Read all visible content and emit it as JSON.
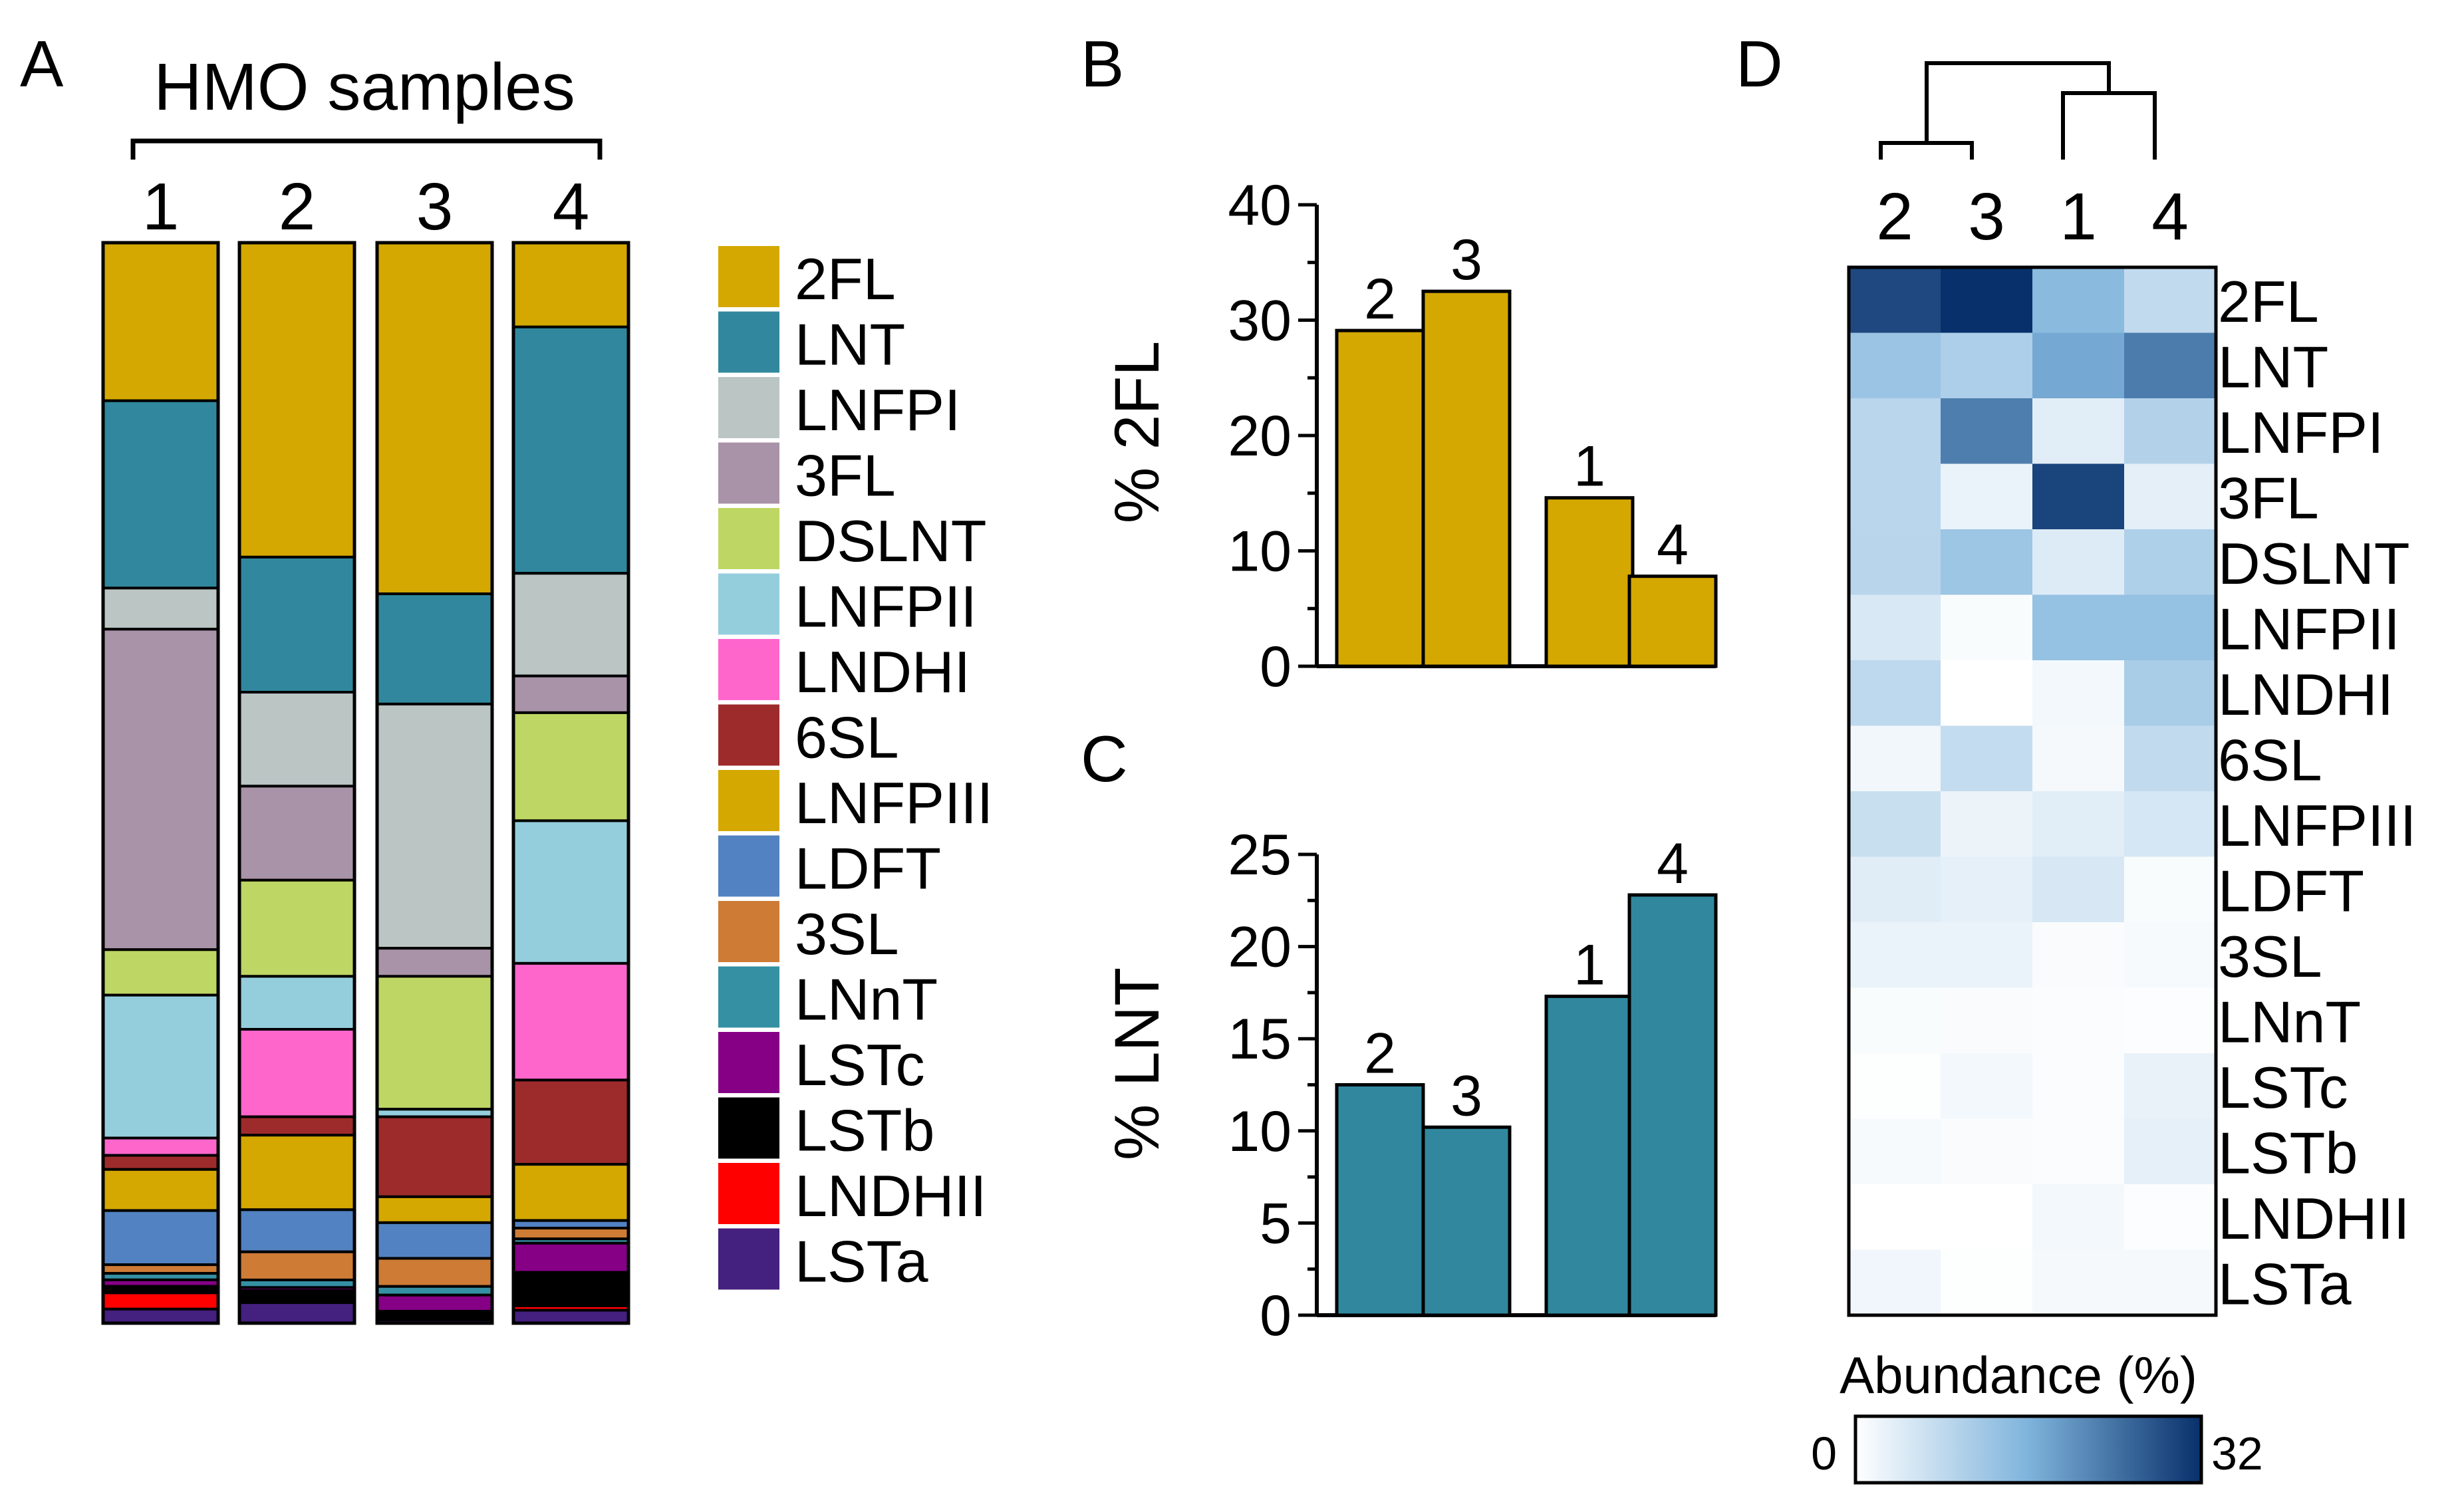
{
  "panel_labels": {
    "a": "A",
    "b": "B",
    "c": "C",
    "d": "D"
  },
  "colors": {
    "2FL": "#D4A800",
    "LNT": "#31889E",
    "LNFPI": "#BAC5C4",
    "3FL": "#A993A8",
    "DSLNT": "#BED663",
    "LNFPII": "#94CEDD",
    "LNDHI": "#FF66CC",
    "6SL": "#9E2B2B",
    "LNFPIII": "#D4A800",
    "LDFT": "#5282C1",
    "3SL": "#CD7B35",
    "LNnT": "#3590A3",
    "LSTc": "#850085",
    "LSTb": "#000000",
    "LNDHII": "#FF0000",
    "LSTa": "#44207F"
  },
  "chart_data": [
    {
      "type": "stacked-bar",
      "title": "HMO samples",
      "categories": [
        "1",
        "2",
        "3",
        "4"
      ],
      "components": [
        "2FL",
        "LNT",
        "LNFPI",
        "3FL",
        "DSLNT",
        "LNFPII",
        "LNDHI",
        "6SL",
        "LNFPIII",
        "LDFT",
        "3SL",
        "LNnT",
        "LSTc",
        "LSTb",
        "LNDHII",
        "LSTa"
      ],
      "legend_items": [
        "2FL",
        "LNT",
        "LNFPI",
        "3FL",
        "DSLNT",
        "LNFPII",
        "LNDHI",
        "6SL",
        "LNFPIII",
        "LDFT",
        "3SL",
        "LNnT",
        "LSTc",
        "LSTb",
        "LNDHII",
        "LSTa"
      ],
      "series": [
        {
          "name": "1",
          "segments": [
            [
              "2FL",
              14.6
            ],
            [
              "LNT",
              17.3
            ],
            [
              "LNFPI",
              3.8
            ],
            [
              "3FL",
              29.6
            ],
            [
              "DSLNT",
              4.2
            ],
            [
              "LNFPII",
              13.2
            ],
            [
              "LNDHI",
              1.6
            ],
            [
              "6SL",
              1.3
            ],
            [
              "LNFPIII",
              3.8
            ],
            [
              "LDFT",
              5.0
            ],
            [
              "3SL",
              0.8
            ],
            [
              "LNnT",
              0.6
            ],
            [
              "LSTc",
              0.6
            ],
            [
              "LSTb",
              0.6
            ],
            [
              "LNDHII",
              1.5
            ],
            [
              "LSTa",
              1.3
            ]
          ]
        },
        {
          "name": "2",
          "segments": [
            [
              "2FL",
              29.1
            ],
            [
              "LNT",
              12.5
            ],
            [
              "LNFPI",
              8.7
            ],
            [
              "3FL",
              8.7
            ],
            [
              "DSLNT",
              8.9
            ],
            [
              "LNFPII",
              4.9
            ],
            [
              "LNDHI",
              8.1
            ],
            [
              "6SL",
              1.7
            ],
            [
              "LNFPIII",
              6.9
            ],
            [
              "LDFT",
              3.9
            ],
            [
              "3SL",
              2.6
            ],
            [
              "LNnT",
              0.7
            ],
            [
              "LSTc",
              0.3
            ],
            [
              "LSTb",
              1.1
            ],
            [
              "LNDHII",
              0.0
            ],
            [
              "LSTa",
              1.9
            ]
          ]
        },
        {
          "name": "3",
          "segments": [
            [
              "2FL",
              32.5
            ],
            [
              "LNT",
              10.2
            ],
            [
              "LNFPI",
              22.6
            ],
            [
              "3FL",
              2.6
            ],
            [
              "DSLNT",
              12.3
            ],
            [
              "LNFPII",
              0.7
            ],
            [
              "LNDHI",
              0.0
            ],
            [
              "6SL",
              7.4
            ],
            [
              "LNFPIII",
              2.4
            ],
            [
              "LDFT",
              3.3
            ],
            [
              "3SL",
              2.6
            ],
            [
              "LNnT",
              0.8
            ],
            [
              "LSTc",
              1.5
            ],
            [
              "LSTb",
              0.8
            ],
            [
              "LNDHII",
              0.0
            ],
            [
              "LSTa",
              0.3
            ]
          ]
        },
        {
          "name": "4",
          "segments": [
            [
              "2FL",
              7.8
            ],
            [
              "LNT",
              22.8
            ],
            [
              "LNFPI",
              9.5
            ],
            [
              "3FL",
              3.4
            ],
            [
              "DSLNT",
              10.0
            ],
            [
              "LNFPII",
              13.2
            ],
            [
              "LNDHI",
              10.8
            ],
            [
              "6SL",
              7.8
            ],
            [
              "LNFPIII",
              5.2
            ],
            [
              "LDFT",
              0.7
            ],
            [
              "3SL",
              1.0
            ],
            [
              "LNnT",
              0.4
            ],
            [
              "LSTc",
              2.7
            ],
            [
              "LSTb",
              3.1
            ],
            [
              "LNDHII",
              0.4
            ],
            [
              "LSTa",
              1.2
            ]
          ]
        }
      ]
    },
    {
      "type": "bar",
      "categories": [
        "2",
        "3",
        "1",
        "4"
      ],
      "values": [
        29.1,
        32.5,
        14.6,
        7.8
      ],
      "ylabel": "% 2FL",
      "ylim": [
        0,
        40
      ],
      "yticks": [
        0,
        10,
        20,
        30,
        40
      ],
      "color": "#D4A800"
    },
    {
      "type": "bar",
      "categories": [
        "2",
        "3",
        "1",
        "4"
      ],
      "values": [
        12.5,
        10.2,
        17.3,
        22.8
      ],
      "ylabel": "% LNT",
      "ylim": [
        0,
        25
      ],
      "yticks": [
        0,
        5,
        10,
        15,
        20,
        25
      ],
      "color": "#31889E"
    },
    {
      "type": "heatmap",
      "columns": [
        "2",
        "3",
        "1",
        "4"
      ],
      "rows": [
        "2FL",
        "LNT",
        "LNFPI",
        "3FL",
        "DSLNT",
        "LNFPII",
        "LNDHI",
        "6SL",
        "LNFPIII",
        "LDFT",
        "3SL",
        "LNnT",
        "LSTc",
        "LSTb",
        "LNDHII",
        "LSTa"
      ],
      "values": [
        [
          29.1,
          32.5,
          14.6,
          7.8
        ],
        [
          12.5,
          10.2,
          17.3,
          22.8
        ],
        [
          8.7,
          22.6,
          3.8,
          9.5
        ],
        [
          8.7,
          2.6,
          29.6,
          3.4
        ],
        [
          8.9,
          12.3,
          4.2,
          10.0
        ],
        [
          4.9,
          0.7,
          13.2,
          13.2
        ],
        [
          8.1,
          0.0,
          1.6,
          10.8
        ],
        [
          1.7,
          7.4,
          1.3,
          7.8
        ],
        [
          6.9,
          2.4,
          3.8,
          5.2
        ],
        [
          3.9,
          3.3,
          5.0,
          0.7
        ],
        [
          2.6,
          2.6,
          0.8,
          1.0
        ],
        [
          0.7,
          0.8,
          0.6,
          0.4
        ],
        [
          0.3,
          1.5,
          0.6,
          2.7
        ],
        [
          1.1,
          0.8,
          0.6,
          3.1
        ],
        [
          0.0,
          0.0,
          1.5,
          0.4
        ],
        [
          1.9,
          0.3,
          1.3,
          1.2
        ]
      ],
      "colorbar_label": "Abundance (%)",
      "colorbar_min": "0",
      "colorbar_max": "32",
      "vmin": 0,
      "vmax": 32,
      "dendrogram": "((2,3),(1,4))"
    }
  ]
}
